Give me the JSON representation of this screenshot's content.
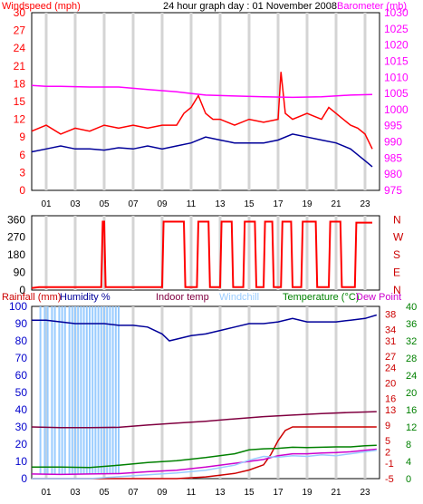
{
  "chart_data": [
    {
      "type": "line",
      "title": "24 hour graph day : 01 November 2008",
      "left_axis_label": "Windspeed (mph)",
      "right_axis_label": "Barometer (mb)",
      "x_tick_labels": [
        "01",
        "03",
        "05",
        "07",
        "09",
        "11",
        "13",
        "15",
        "17",
        "19",
        "21",
        "23"
      ],
      "x_range_hours": [
        0,
        24
      ],
      "y_left_range": [
        0,
        30
      ],
      "y_left_ticks": [
        0,
        3,
        6,
        9,
        12,
        15,
        18,
        21,
        24,
        27,
        30
      ],
      "y_right_range": [
        975,
        1030
      ],
      "y_right_ticks": [
        975,
        980,
        985,
        990,
        995,
        1000,
        1005,
        1010,
        1015,
        1020,
        1025,
        1030
      ],
      "colors": {
        "wind_gust": "#ff0000",
        "wind_avg": "#000099",
        "barometer": "#ff00ff"
      },
      "series": [
        {
          "name": "Wind gust (mph)",
          "axis": "left",
          "color": "#ff0000",
          "x": [
            0,
            1,
            2,
            3,
            4,
            5,
            6,
            7,
            8,
            9,
            10,
            10.5,
            11,
            11.5,
            12,
            12.5,
            13,
            14,
            15,
            16,
            17,
            17.2,
            17.5,
            18,
            19,
            20,
            20.5,
            21,
            22,
            22.5,
            23,
            23.5
          ],
          "y": [
            10,
            11,
            9.5,
            10.5,
            10,
            11,
            10.5,
            11,
            10.5,
            11,
            11,
            13,
            14,
            16,
            13,
            12,
            12,
            11,
            12,
            11.5,
            12,
            20,
            13,
            12,
            13,
            12,
            14,
            13,
            11,
            10.5,
            9.5,
            7
          ]
        },
        {
          "name": "Wind average (mph)",
          "axis": "left",
          "color": "#000099",
          "x": [
            0,
            1,
            2,
            3,
            4,
            5,
            6,
            7,
            8,
            9,
            10,
            11,
            12,
            13,
            14,
            15,
            16,
            17,
            18,
            19,
            20,
            21,
            22,
            22.5,
            23,
            23.5
          ],
          "y": [
            6.5,
            7,
            7.5,
            7,
            7,
            6.8,
            7.2,
            7,
            7.5,
            7,
            7.5,
            8,
            9,
            8.5,
            8,
            8,
            8,
            8.5,
            9.5,
            9,
            8.5,
            8,
            7,
            6,
            5,
            4
          ]
        },
        {
          "name": "Barometer (mb)",
          "axis": "right",
          "color": "#ff00ff",
          "x": [
            0,
            1,
            2,
            4,
            6,
            8,
            10,
            11,
            12,
            14,
            16,
            18,
            20,
            22,
            23.5
          ],
          "y": [
            1007.5,
            1007.2,
            1007.2,
            1007.0,
            1007.0,
            1006.2,
            1005.5,
            1005.0,
            1004.5,
            1004.2,
            1004.0,
            1003.8,
            1004.0,
            1004.5,
            1004.7
          ]
        }
      ]
    },
    {
      "type": "line",
      "title": "",
      "y_left_ticks": [
        0,
        90,
        180,
        270,
        360
      ],
      "y_left_range": [
        0,
        380
      ],
      "y_right_labels": [
        "N",
        "W",
        "S",
        "E",
        "N"
      ],
      "colors": {
        "direction": "#ff0000"
      },
      "series": [
        {
          "name": "Wind direction (deg)",
          "axis": "left",
          "color": "#ff0000",
          "x": [
            0,
            0.5,
            4.8,
            4.9,
            5.0,
            5.1,
            9.0,
            9.1,
            10.5,
            10.6,
            11.4,
            11.5,
            12.2,
            12.3,
            13.0,
            13.1,
            13.8,
            13.9,
            14.6,
            14.7,
            15.4,
            15.5,
            16.0,
            16.1,
            16.6,
            16.7,
            17.2,
            17.3,
            17.9,
            18.0,
            18.6,
            18.7,
            19.6,
            19.7,
            20.5,
            20.6,
            21.3,
            21.4,
            22.3,
            22.4,
            23.5
          ],
          "y": [
            10,
            15,
            15,
            350,
            350,
            15,
            15,
            350,
            350,
            15,
            15,
            350,
            350,
            15,
            15,
            350,
            350,
            15,
            15,
            350,
            350,
            15,
            15,
            350,
            350,
            15,
            15,
            350,
            350,
            15,
            15,
            350,
            350,
            15,
            15,
            350,
            350,
            15,
            15,
            345,
            345
          ]
        }
      ]
    },
    {
      "type": "line",
      "title": "",
      "labels": {
        "rainfall": "Rainfall (mm)",
        "humidity": "Humidity %",
        "indoor": "Indoor temp",
        "windchill": "Windchill",
        "temperature": "Temperature (°C)",
        "dewpoint": "Dew Point"
      },
      "colors": {
        "rainfall": "#cc0000",
        "humidity": "#000099",
        "indoor": "#800040",
        "windchill": "#99ccff",
        "temperature": "#008000",
        "dewpoint": "#cc00cc"
      },
      "y_left_ticks": [
        0,
        10,
        20,
        30,
        40,
        50,
        60,
        70,
        80,
        90,
        100
      ],
      "y_left_range": [
        0,
        100
      ],
      "y_right_outer_ticks": [
        0,
        4,
        8,
        12,
        16,
        20,
        24,
        28,
        32,
        36,
        40
      ],
      "y_right_inner_ticks": [
        -5,
        -1,
        2,
        5,
        9,
        13,
        16,
        20,
        24,
        27,
        31,
        34,
        38
      ],
      "temp_range_c": [
        -5,
        40
      ],
      "series": [
        {
          "name": "Humidity %",
          "axis": "left",
          "color": "#000099",
          "x": [
            0,
            1,
            2,
            3,
            4,
            5,
            6,
            7,
            8,
            9,
            9.5,
            10,
            11,
            12,
            13,
            14,
            15,
            16,
            17,
            18,
            19,
            20,
            21,
            22,
            23,
            23.8
          ],
          "y": [
            92,
            92,
            91,
            90,
            90,
            90,
            89,
            89,
            88,
            84,
            80,
            81,
            83,
            84,
            86,
            88,
            90,
            90,
            91,
            93,
            91,
            91,
            91,
            92,
            93,
            95
          ]
        },
        {
          "name": "Rainfall (mm)",
          "axis": "left",
          "color": "#cc0000",
          "x": [
            0,
            6,
            8,
            10,
            12,
            13,
            14,
            15,
            16,
            16.5,
            17,
            17.5,
            18,
            19,
            20,
            21,
            22,
            23,
            23.8
          ],
          "y": [
            0,
            0,
            0,
            0,
            1,
            2,
            3,
            5,
            8,
            14,
            22,
            28,
            30,
            30,
            30,
            30,
            30,
            30,
            30
          ]
        },
        {
          "name": "Indoor temp (°C)",
          "axis": "temp",
          "color": "#800040",
          "x": [
            0,
            2,
            4,
            6,
            8,
            10,
            12,
            14,
            16,
            18,
            20,
            22,
            23.8
          ],
          "y": [
            8.5,
            8.3,
            8.3,
            8.4,
            9.0,
            9.5,
            10.0,
            10.6,
            11.2,
            11.6,
            12.0,
            12.3,
            12.5
          ]
        },
        {
          "name": "Temperature (°C)",
          "axis": "temp",
          "color": "#008000",
          "x": [
            0,
            2,
            4,
            6,
            8,
            10,
            12,
            14,
            15,
            16,
            17,
            18,
            19,
            20,
            21,
            22,
            23,
            23.8
          ],
          "y": [
            -2.0,
            -2.0,
            -2.1,
            -1.5,
            -0.8,
            -0.3,
            0.5,
            1.5,
            2.5,
            2.8,
            2.9,
            3.2,
            3.1,
            3.2,
            3.3,
            3.3,
            3.6,
            3.7
          ]
        },
        {
          "name": "Dew Point (°C)",
          "axis": "temp",
          "color": "#cc00cc",
          "x": [
            0,
            2,
            4,
            6,
            8,
            10,
            12,
            14,
            16,
            17,
            18,
            19,
            20,
            21,
            22,
            23,
            23.8
          ],
          "y": [
            -3.8,
            -3.9,
            -3.8,
            -3.7,
            -3.2,
            -2.8,
            -2.0,
            -1.0,
            0.0,
            1.0,
            1.5,
            1.5,
            1.7,
            1.8,
            2.0,
            2.4,
            2.7
          ]
        },
        {
          "name": "Windchill (°C)",
          "axis": "temp",
          "color": "#99ccff",
          "x": [
            0,
            2,
            4,
            6,
            8,
            10,
            12,
            14,
            15,
            16,
            17,
            18,
            19,
            20,
            21,
            22,
            23,
            23.8
          ],
          "y": [
            -5.0,
            -5.0,
            -5.0,
            -4.5,
            -4.0,
            -3.5,
            -2.8,
            -1.5,
            -0.2,
            0.8,
            0.6,
            1.0,
            0.8,
            1.2,
            1.0,
            1.5,
            2.0,
            2.4
          ]
        }
      ],
      "windchill_bars_x_hours": [
        0.6,
        0.9,
        1.1,
        1.4,
        1.6,
        1.9,
        2.1,
        2.3,
        2.6,
        2.8,
        3.0,
        3.2,
        3.4,
        3.6,
        3.8,
        4.0,
        4.2,
        4.4,
        4.6,
        4.8,
        5.0,
        5.2,
        5.4,
        5.6,
        5.8,
        6.0
      ]
    }
  ]
}
